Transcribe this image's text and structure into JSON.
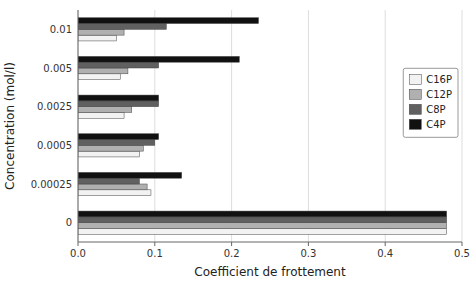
{
  "chart_data": {
    "type": "bar",
    "orientation": "horizontal",
    "xlabel": "Coefficient de frottement",
    "ylabel": "Concentration (mol/l)",
    "categories": [
      "0",
      "0.00025",
      "0.0005",
      "0.0025",
      "0.005",
      "0.01"
    ],
    "series": [
      {
        "name": "C16P",
        "color": "#f2f2f2",
        "values": [
          0.48,
          0.095,
          0.08,
          0.06,
          0.055,
          0.05
        ]
      },
      {
        "name": "C12P",
        "color": "#b0b0b0",
        "values": [
          0.48,
          0.09,
          0.085,
          0.07,
          0.065,
          0.06
        ]
      },
      {
        "name": "C8P",
        "color": "#606060",
        "values": [
          0.48,
          0.08,
          0.1,
          0.105,
          0.105,
          0.115
        ]
      },
      {
        "name": "C4P",
        "color": "#111111",
        "values": [
          0.48,
          0.135,
          0.105,
          0.105,
          0.21,
          0.235
        ]
      }
    ],
    "xlim": [
      0,
      0.5
    ],
    "xticks": [
      {
        "value": 0,
        "label": "0.0"
      },
      0.1,
      0.2,
      0.3,
      0.4,
      0.5
    ],
    "grid": true,
    "legend": "right"
  }
}
